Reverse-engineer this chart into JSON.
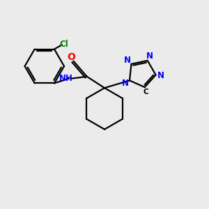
{
  "background_color": "#ebebeb",
  "bond_color": "#000000",
  "atom_colors": {
    "N": "#0000ff",
    "O": "#ff0000",
    "Cl": "#008000",
    "H": "#000000",
    "C": "#000000"
  },
  "figure_size": [
    3.0,
    3.0
  ],
  "dpi": 100,
  "line_width": 1.6
}
